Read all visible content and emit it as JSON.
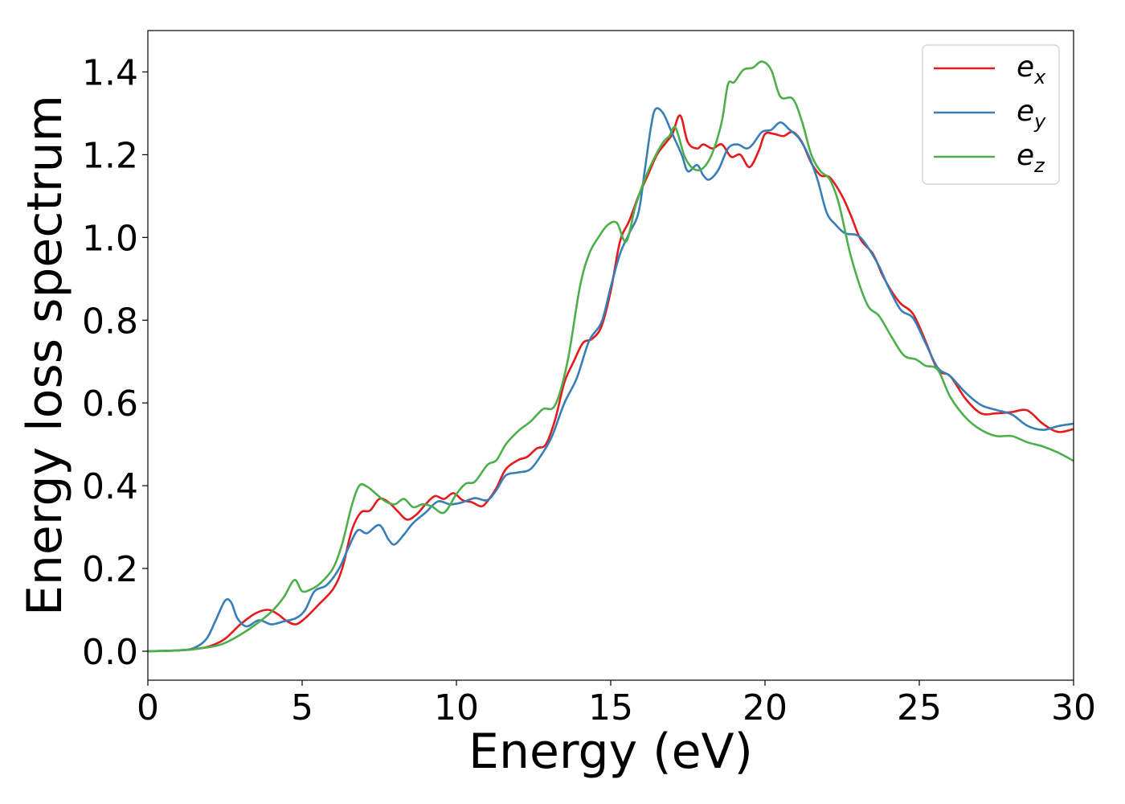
{
  "chart_data": {
    "type": "line",
    "title": "",
    "xlabel": "Energy (eV)",
    "ylabel": "Energy loss spectrum",
    "xlim": [
      0,
      30
    ],
    "ylim": [
      -0.07,
      1.5
    ],
    "xticks": [
      0,
      5,
      10,
      15,
      20,
      25,
      30
    ],
    "xtick_labels": [
      "0",
      "5",
      "10",
      "15",
      "20",
      "25",
      "30"
    ],
    "yticks": [
      0.0,
      0.2,
      0.4,
      0.6,
      0.8,
      1.0,
      1.2,
      1.4
    ],
    "ytick_labels": [
      "0.0",
      "0.2",
      "0.4",
      "0.6",
      "0.8",
      "1.0",
      "1.2",
      "1.4"
    ],
    "grid": false,
    "legend_position": "top-right",
    "series": [
      {
        "name": "e",
        "subscript": "x",
        "color": "#e41a1c",
        "points": [
          [
            0,
            0
          ],
          [
            1,
            0.002
          ],
          [
            1.5,
            0.005
          ],
          [
            2,
            0.012
          ],
          [
            2.5,
            0.03
          ],
          [
            3,
            0.065
          ],
          [
            3.5,
            0.092
          ],
          [
            3.9,
            0.1
          ],
          [
            4.2,
            0.09
          ],
          [
            4.5,
            0.073
          ],
          [
            4.8,
            0.065
          ],
          [
            5.1,
            0.08
          ],
          [
            5.5,
            0.11
          ],
          [
            6,
            0.15
          ],
          [
            6.3,
            0.2
          ],
          [
            6.6,
            0.29
          ],
          [
            6.9,
            0.335
          ],
          [
            7.2,
            0.34
          ],
          [
            7.5,
            0.368
          ],
          [
            7.8,
            0.36
          ],
          [
            8.1,
            0.338
          ],
          [
            8.4,
            0.318
          ],
          [
            8.7,
            0.33
          ],
          [
            9,
            0.355
          ],
          [
            9.3,
            0.375
          ],
          [
            9.6,
            0.368
          ],
          [
            9.9,
            0.382
          ],
          [
            10.2,
            0.365
          ],
          [
            10.5,
            0.36
          ],
          [
            10.8,
            0.35
          ],
          [
            11,
            0.362
          ],
          [
            11.3,
            0.395
          ],
          [
            11.6,
            0.44
          ],
          [
            12,
            0.462
          ],
          [
            12.3,
            0.47
          ],
          [
            12.6,
            0.49
          ],
          [
            12.9,
            0.5
          ],
          [
            13.2,
            0.56
          ],
          [
            13.5,
            0.65
          ],
          [
            13.8,
            0.7
          ],
          [
            14.1,
            0.745
          ],
          [
            14.4,
            0.755
          ],
          [
            14.7,
            0.785
          ],
          [
            15,
            0.87
          ],
          [
            15.3,
            0.99
          ],
          [
            15.6,
            1.04
          ],
          [
            15.9,
            1.1
          ],
          [
            16.2,
            1.15
          ],
          [
            16.5,
            1.2
          ],
          [
            16.8,
            1.23
          ],
          [
            17,
            1.25
          ],
          [
            17.25,
            1.295
          ],
          [
            17.5,
            1.23
          ],
          [
            17.8,
            1.215
          ],
          [
            18,
            1.225
          ],
          [
            18.3,
            1.215
          ],
          [
            18.6,
            1.225
          ],
          [
            18.9,
            1.195
          ],
          [
            19.2,
            1.2
          ],
          [
            19.5,
            1.17
          ],
          [
            19.8,
            1.21
          ],
          [
            20,
            1.25
          ],
          [
            20.3,
            1.25
          ],
          [
            20.6,
            1.245
          ],
          [
            20.9,
            1.255
          ],
          [
            21.2,
            1.23
          ],
          [
            21.5,
            1.18
          ],
          [
            21.8,
            1.15
          ],
          [
            22.1,
            1.145
          ],
          [
            22.5,
            1.1
          ],
          [
            22.8,
            1.05
          ],
          [
            23.1,
            0.995
          ],
          [
            23.5,
            0.96
          ],
          [
            23.8,
            0.91
          ],
          [
            24.1,
            0.87
          ],
          [
            24.4,
            0.84
          ],
          [
            24.8,
            0.815
          ],
          [
            25.2,
            0.75
          ],
          [
            25.6,
            0.68
          ],
          [
            26,
            0.665
          ],
          [
            26.5,
            0.61
          ],
          [
            27,
            0.575
          ],
          [
            27.5,
            0.575
          ],
          [
            28,
            0.578
          ],
          [
            28.5,
            0.582
          ],
          [
            29,
            0.55
          ],
          [
            29.5,
            0.53
          ],
          [
            30,
            0.537
          ]
        ]
      },
      {
        "name": "e",
        "subscript": "y",
        "color": "#377eb8",
        "points": [
          [
            0,
            0
          ],
          [
            1,
            0.002
          ],
          [
            1.5,
            0.008
          ],
          [
            1.9,
            0.03
          ],
          [
            2.2,
            0.075
          ],
          [
            2.5,
            0.122
          ],
          [
            2.7,
            0.118
          ],
          [
            2.9,
            0.08
          ],
          [
            3.2,
            0.06
          ],
          [
            3.6,
            0.075
          ],
          [
            4,
            0.065
          ],
          [
            4.4,
            0.072
          ],
          [
            4.8,
            0.08
          ],
          [
            5.1,
            0.1
          ],
          [
            5.4,
            0.145
          ],
          [
            5.8,
            0.16
          ],
          [
            6.2,
            0.2
          ],
          [
            6.5,
            0.25
          ],
          [
            6.8,
            0.292
          ],
          [
            7.1,
            0.285
          ],
          [
            7.5,
            0.305
          ],
          [
            7.8,
            0.27
          ],
          [
            8,
            0.258
          ],
          [
            8.3,
            0.282
          ],
          [
            8.6,
            0.31
          ],
          [
            9,
            0.335
          ],
          [
            9.4,
            0.362
          ],
          [
            9.8,
            0.355
          ],
          [
            10.2,
            0.36
          ],
          [
            10.6,
            0.37
          ],
          [
            11,
            0.365
          ],
          [
            11.3,
            0.39
          ],
          [
            11.6,
            0.425
          ],
          [
            12,
            0.432
          ],
          [
            12.4,
            0.44
          ],
          [
            12.8,
            0.48
          ],
          [
            13.1,
            0.52
          ],
          [
            13.5,
            0.6
          ],
          [
            13.9,
            0.66
          ],
          [
            14.3,
            0.75
          ],
          [
            14.7,
            0.795
          ],
          [
            15,
            0.88
          ],
          [
            15.3,
            0.96
          ],
          [
            15.6,
            1.01
          ],
          [
            15.9,
            1.06
          ],
          [
            16.1,
            1.16
          ],
          [
            16.3,
            1.265
          ],
          [
            16.45,
            1.31
          ],
          [
            16.7,
            1.3
          ],
          [
            17,
            1.25
          ],
          [
            17.3,
            1.2
          ],
          [
            17.5,
            1.16
          ],
          [
            17.8,
            1.175
          ],
          [
            18,
            1.15
          ],
          [
            18.2,
            1.14
          ],
          [
            18.5,
            1.165
          ],
          [
            18.8,
            1.215
          ],
          [
            19.1,
            1.225
          ],
          [
            19.4,
            1.215
          ],
          [
            19.6,
            1.225
          ],
          [
            19.9,
            1.255
          ],
          [
            20.2,
            1.26
          ],
          [
            20.5,
            1.278
          ],
          [
            20.8,
            1.26
          ],
          [
            21.1,
            1.24
          ],
          [
            21.4,
            1.2
          ],
          [
            21.7,
            1.14
          ],
          [
            22,
            1.06
          ],
          [
            22.3,
            1.03
          ],
          [
            22.6,
            1.01
          ],
          [
            23,
            1.005
          ],
          [
            23.3,
            0.98
          ],
          [
            23.7,
            0.93
          ],
          [
            24,
            0.88
          ],
          [
            24.4,
            0.825
          ],
          [
            24.8,
            0.805
          ],
          [
            25.2,
            0.745
          ],
          [
            25.6,
            0.685
          ],
          [
            26,
            0.665
          ],
          [
            26.5,
            0.625
          ],
          [
            27,
            0.595
          ],
          [
            27.5,
            0.583
          ],
          [
            28,
            0.572
          ],
          [
            28.5,
            0.545
          ],
          [
            29,
            0.535
          ],
          [
            29.5,
            0.544
          ],
          [
            30,
            0.55
          ]
        ]
      },
      {
        "name": "e",
        "subscript": "z",
        "color": "#4daf4a",
        "points": [
          [
            0,
            0
          ],
          [
            1,
            0.002
          ],
          [
            2,
            0.01
          ],
          [
            2.5,
            0.02
          ],
          [
            3,
            0.04
          ],
          [
            3.5,
            0.065
          ],
          [
            4,
            0.095
          ],
          [
            4.4,
            0.13
          ],
          [
            4.75,
            0.172
          ],
          [
            5,
            0.145
          ],
          [
            5.3,
            0.15
          ],
          [
            5.6,
            0.165
          ],
          [
            6,
            0.2
          ],
          [
            6.3,
            0.26
          ],
          [
            6.6,
            0.35
          ],
          [
            6.85,
            0.4
          ],
          [
            7.1,
            0.398
          ],
          [
            7.4,
            0.38
          ],
          [
            7.7,
            0.362
          ],
          [
            8,
            0.355
          ],
          [
            8.3,
            0.368
          ],
          [
            8.6,
            0.348
          ],
          [
            8.9,
            0.355
          ],
          [
            9.2,
            0.35
          ],
          [
            9.6,
            0.335
          ],
          [
            10,
            0.38
          ],
          [
            10.3,
            0.405
          ],
          [
            10.6,
            0.41
          ],
          [
            11,
            0.45
          ],
          [
            11.3,
            0.462
          ],
          [
            11.6,
            0.5
          ],
          [
            12,
            0.532
          ],
          [
            12.4,
            0.555
          ],
          [
            12.8,
            0.585
          ],
          [
            13.2,
            0.595
          ],
          [
            13.6,
            0.7
          ],
          [
            14,
            0.88
          ],
          [
            14.3,
            0.96
          ],
          [
            14.6,
            1.0
          ],
          [
            14.9,
            1.03
          ],
          [
            15.2,
            1.035
          ],
          [
            15.5,
            0.99
          ],
          [
            15.8,
            1.075
          ],
          [
            16.1,
            1.14
          ],
          [
            16.4,
            1.19
          ],
          [
            16.7,
            1.23
          ],
          [
            16.9,
            1.245
          ],
          [
            17.1,
            1.265
          ],
          [
            17.4,
            1.195
          ],
          [
            17.7,
            1.165
          ],
          [
            18,
            1.168
          ],
          [
            18.3,
            1.205
          ],
          [
            18.6,
            1.28
          ],
          [
            18.8,
            1.37
          ],
          [
            19,
            1.375
          ],
          [
            19.3,
            1.405
          ],
          [
            19.6,
            1.41
          ],
          [
            19.9,
            1.425
          ],
          [
            20.2,
            1.405
          ],
          [
            20.5,
            1.34
          ],
          [
            20.9,
            1.335
          ],
          [
            21.2,
            1.28
          ],
          [
            21.5,
            1.2
          ],
          [
            21.8,
            1.16
          ],
          [
            22.1,
            1.14
          ],
          [
            22.4,
            1.08
          ],
          [
            22.8,
            0.95
          ],
          [
            23.3,
            0.84
          ],
          [
            23.7,
            0.81
          ],
          [
            24.1,
            0.76
          ],
          [
            24.5,
            0.715
          ],
          [
            24.9,
            0.705
          ],
          [
            25.2,
            0.69
          ],
          [
            25.6,
            0.68
          ],
          [
            26,
            0.615
          ],
          [
            26.5,
            0.565
          ],
          [
            27,
            0.535
          ],
          [
            27.5,
            0.52
          ],
          [
            28,
            0.52
          ],
          [
            28.5,
            0.505
          ],
          [
            29,
            0.495
          ],
          [
            29.5,
            0.48
          ],
          [
            30,
            0.46
          ]
        ]
      }
    ]
  }
}
